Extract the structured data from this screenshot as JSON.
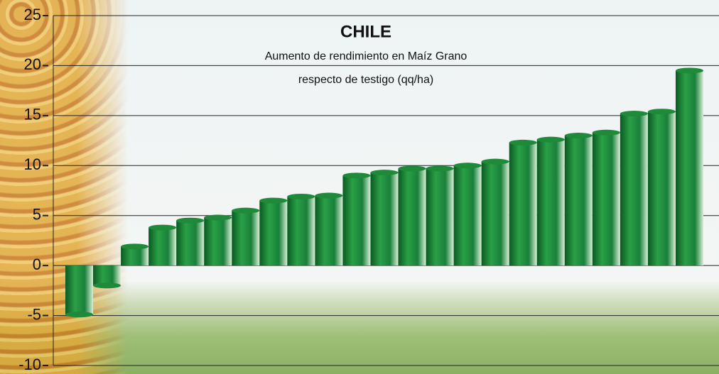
{
  "chart_data": {
    "type": "bar",
    "title": "CHILE",
    "subtitle": [
      "Aumento de rendimiento en Maíz Grano",
      "respecto de testigo (qq/ha)"
    ],
    "values": [
      -4.9,
      -2,
      1.9,
      3.8,
      4.5,
      4.8,
      5.5,
      6.5,
      6.9,
      7.0,
      9.0,
      9.3,
      9.7,
      9.7,
      10.0,
      10.4,
      12.3,
      12.6,
      13.0,
      13.3,
      15.2,
      15.4,
      19.5
    ],
    "color": "#1f8a3a",
    "ylim": [
      -10,
      25
    ],
    "yticks": [
      -10,
      -5,
      0,
      5,
      10,
      15,
      20,
      25
    ],
    "grid": true
  }
}
